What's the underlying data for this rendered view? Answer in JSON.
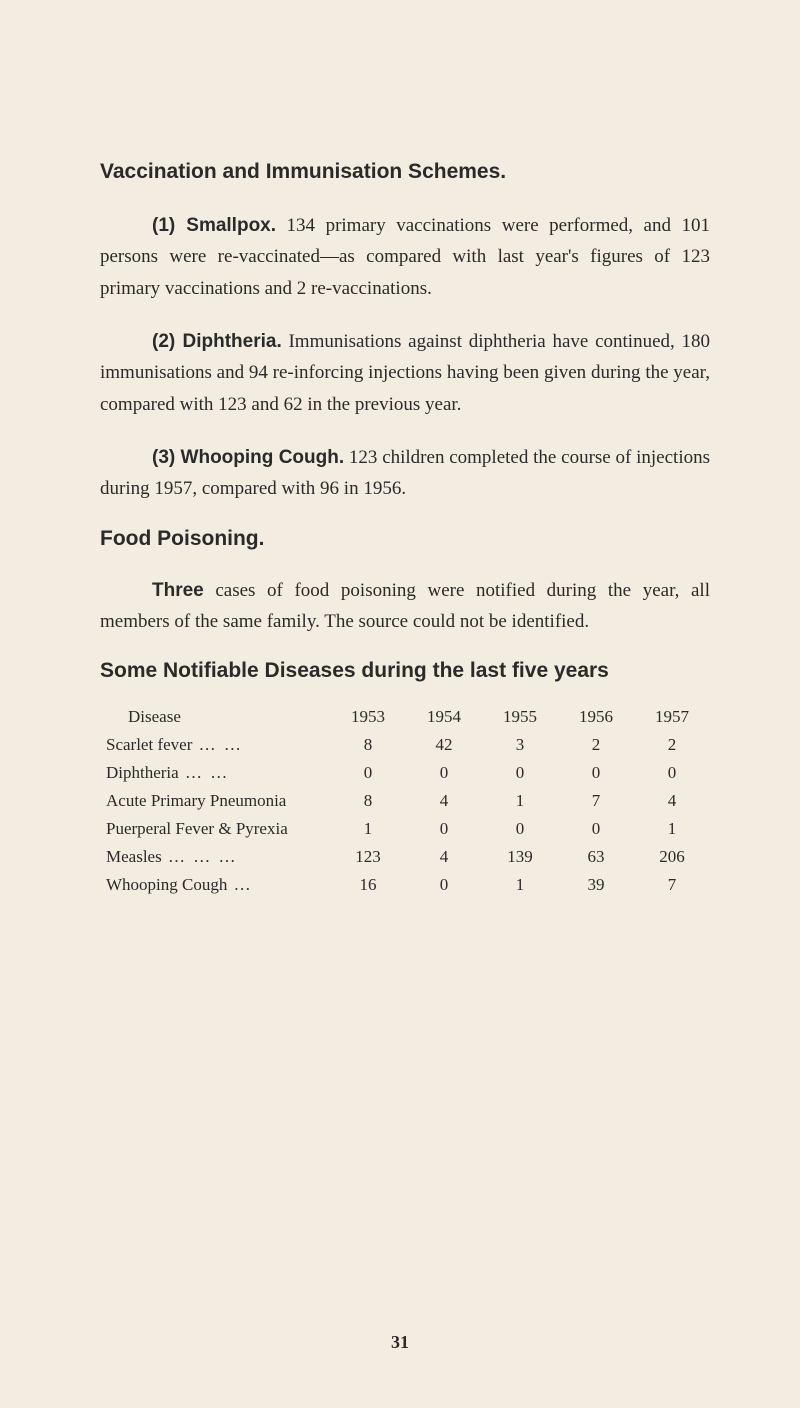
{
  "heading1": "Vaccination and Immunisation Schemes.",
  "para1": {
    "bold_prefix": "(1) Smallpox.",
    "text": " 134 primary vaccinations were per­formed, and 101 persons were re-vaccinated—as compared with last year's figures of 123 primary vaccinations and 2 re-vaccinations."
  },
  "para2": {
    "bold_prefix": "(2) Diphtheria.",
    "text": " Immunisations against diphtheria have continued, 180 immunisations and 94 re-inforcing injections having been given during the year, compared with 123 and 62 in the previous year."
  },
  "para3": {
    "bold_prefix": "(3) Whooping Cough.",
    "text": " 123 children completed the course of injections during 1957, compared with 96 in 1956."
  },
  "heading2": "Food Poisoning.",
  "para4": {
    "bold_prefix": "Three",
    "text": " cases of food poisoning were notified during the year, all members of the same family. The source could not be identified."
  },
  "heading3": "Some Notifiable Diseases during the last five years",
  "table": {
    "header": [
      "Disease",
      "1953",
      "1954",
      "1955",
      "1956",
      "1957"
    ],
    "rows": [
      {
        "label": "Scarlet fever",
        "dots": "…   …",
        "values": [
          "8",
          "42",
          "3",
          "2",
          "2"
        ]
      },
      {
        "label": "Diphtheria",
        "dots": "…   …",
        "values": [
          "0",
          "0",
          "0",
          "0",
          "0"
        ]
      },
      {
        "label": "Acute Primary Pneumonia",
        "dots": "",
        "values": [
          "8",
          "4",
          "1",
          "7",
          "4"
        ]
      },
      {
        "label": "Puerperal Fever & Pyrexia",
        "dots": "",
        "values": [
          "1",
          "0",
          "0",
          "0",
          "1"
        ]
      },
      {
        "label": "Measles",
        "dots": "…   …   …",
        "values": [
          "123",
          "4",
          "139",
          "63",
          "206"
        ]
      },
      {
        "label": "Whooping Cough",
        "dots": "…",
        "values": [
          "16",
          "0",
          "1",
          "39",
          "7"
        ]
      }
    ]
  },
  "page_number": "31"
}
